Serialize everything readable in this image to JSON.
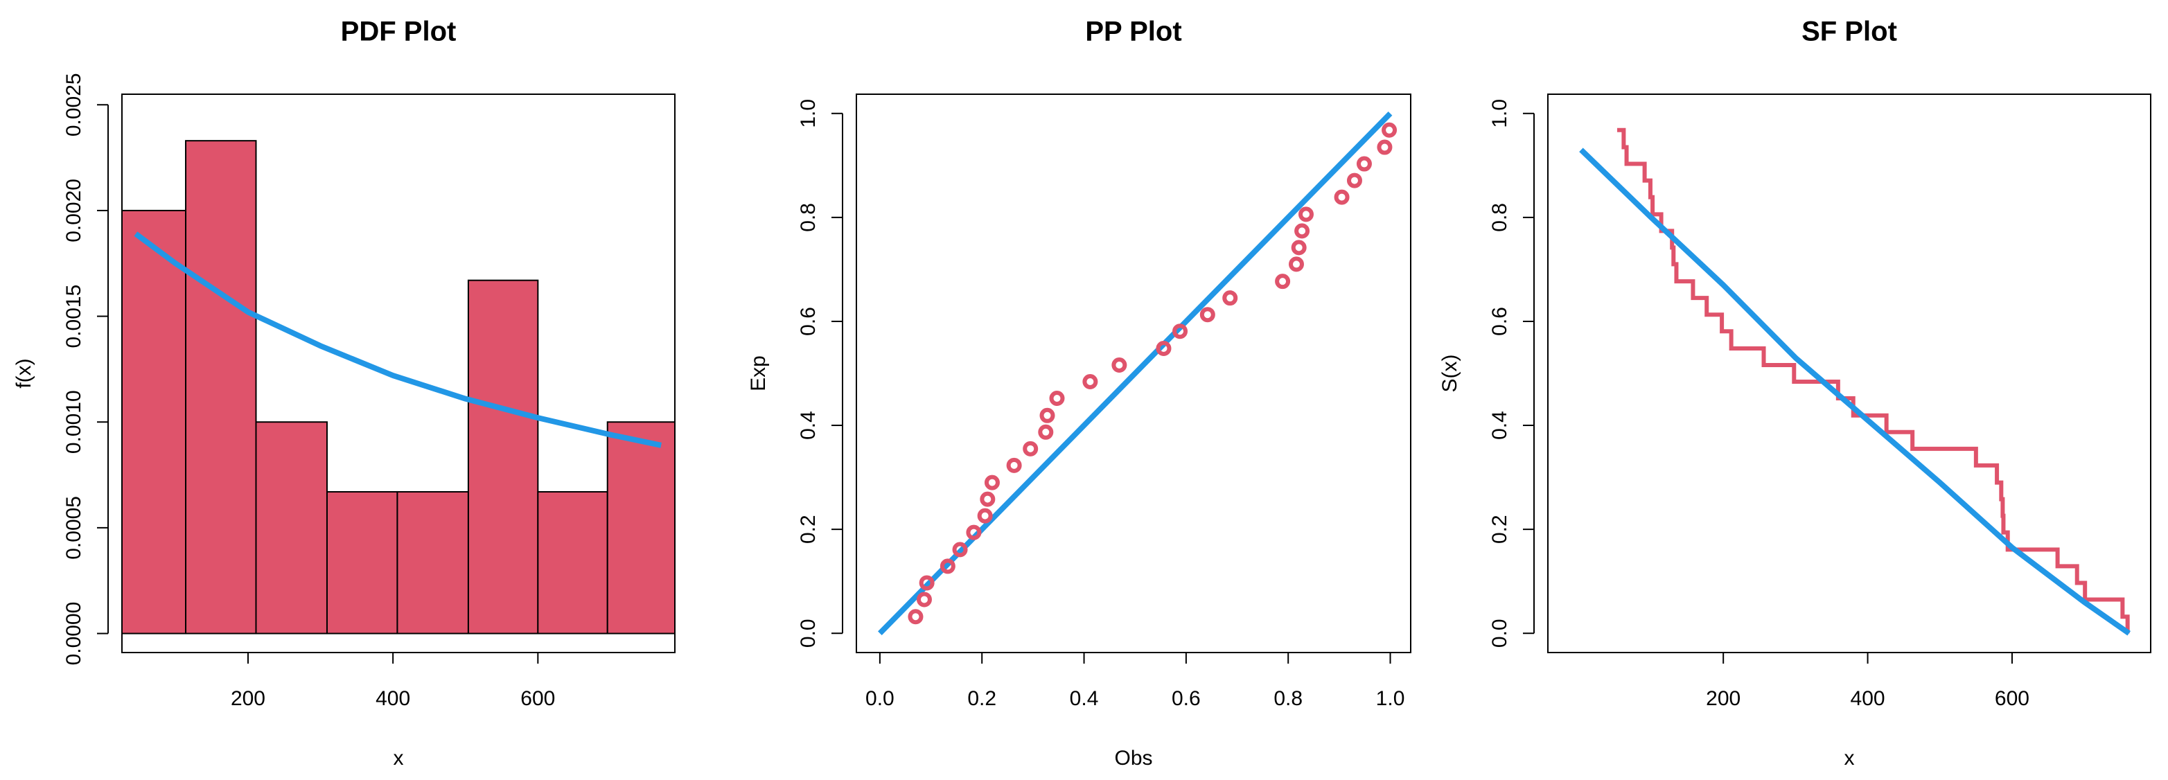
{
  "chart_data": [
    {
      "type": "histogram",
      "title": "PDF Plot",
      "xlabel": "x",
      "ylabel": "f(x)",
      "bins": [
        26,
        114,
        211,
        309,
        406,
        504,
        600,
        696,
        789
      ],
      "values": [
        0.002,
        0.00233,
        0.001,
        0.00067,
        0.00067,
        0.00167,
        0.00067,
        0.001
      ],
      "color": "#df536b",
      "curve": {
        "x": [
          45,
          100,
          200,
          300,
          400,
          500,
          600,
          700,
          770
        ],
        "values": [
          0.00189,
          0.00175,
          0.00152,
          0.00136,
          0.00122,
          0.00111,
          0.00102,
          0.00094,
          0.00089
        ],
        "color": "#2297e6"
      },
      "xlim": [
        26,
        789
      ],
      "ylim": [
        -9e-05,
        0.00255
      ],
      "xticks": [
        200,
        400,
        600
      ],
      "yticks": [
        {
          "value": 0,
          "label": "0.0000"
        },
        {
          "value": 0.0005,
          "label": "0.0005"
        },
        {
          "value": 0.001,
          "label": "0.0010"
        },
        {
          "value": 0.0015,
          "label": "0.0015"
        },
        {
          "value": 0.002,
          "label": "0.0020"
        },
        {
          "value": 0.0025,
          "label": "0.0025"
        }
      ]
    },
    {
      "type": "scatter",
      "title": "PP Plot",
      "xlabel": "Obs",
      "ylabel": "Exp",
      "x": [
        0.07,
        0.087,
        0.092,
        0.133,
        0.157,
        0.184,
        0.206,
        0.211,
        0.22,
        0.263,
        0.295,
        0.325,
        0.328,
        0.347,
        0.412,
        0.469,
        0.556,
        0.588,
        0.642,
        0.686,
        0.789,
        0.816,
        0.821,
        0.827,
        0.835,
        0.905,
        0.93,
        0.949,
        0.989,
        0.998
      ],
      "values": [
        0.032,
        0.065,
        0.097,
        0.129,
        0.161,
        0.194,
        0.226,
        0.258,
        0.29,
        0.323,
        0.355,
        0.387,
        0.419,
        0.452,
        0.484,
        0.516,
        0.548,
        0.581,
        0.613,
        0.645,
        0.677,
        0.71,
        0.742,
        0.774,
        0.806,
        0.839,
        0.871,
        0.903,
        0.935,
        0.968
      ],
      "color": "#df536b",
      "curve": {
        "x": [
          0,
          1
        ],
        "values": [
          0,
          1
        ],
        "color": "#2297e6"
      },
      "xlim": [
        -0.046,
        1.04
      ],
      "ylim": [
        -0.037,
        1.037
      ],
      "xticks": [
        {
          "value": 0,
          "label": "0.0"
        },
        0.2,
        0.4,
        0.6,
        0.8,
        {
          "value": 1,
          "label": "1.0"
        }
      ],
      "yticks": [
        {
          "value": 0,
          "label": "0.0"
        },
        0.2,
        0.4,
        0.6,
        0.8,
        {
          "value": 1,
          "label": "1.0"
        }
      ]
    },
    {
      "type": "step",
      "title": "SF Plot",
      "xlabel": "x",
      "ylabel": "S(x)",
      "x": [
        53,
        62,
        66,
        91,
        99,
        102,
        114,
        129,
        131,
        135,
        158,
        177,
        198,
        211,
        256,
        298,
        359,
        380,
        426,
        462,
        550,
        579,
        585,
        587,
        588,
        594,
        663,
        690,
        701,
        753,
        760
      ],
      "values": [
        0.968,
        0.935,
        0.903,
        0.871,
        0.839,
        0.806,
        0.774,
        0.742,
        0.71,
        0.677,
        0.645,
        0.613,
        0.581,
        0.548,
        0.516,
        0.484,
        0.452,
        0.419,
        0.387,
        0.355,
        0.323,
        0.29,
        0.258,
        0.226,
        0.194,
        0.161,
        0.129,
        0.097,
        0.065,
        0.032,
        0
      ],
      "color": "#df536b",
      "curve": {
        "x": [
          3,
          100,
          200,
          300,
          400,
          500,
          600,
          700,
          762
        ],
        "values": [
          0.93,
          0.8,
          0.67,
          0.53,
          0.41,
          0.29,
          0.165,
          0.06,
          0
        ],
        "color": "#2297e6"
      },
      "xlim": [
        -43,
        792
      ],
      "ylim": [
        -0.037,
        1.037
      ],
      "xticks": [
        200,
        400,
        600
      ],
      "yticks": [
        {
          "value": 0,
          "label": "0.0"
        },
        0.2,
        0.4,
        0.6,
        0.8,
        {
          "value": 1,
          "label": "1.0"
        }
      ]
    }
  ]
}
